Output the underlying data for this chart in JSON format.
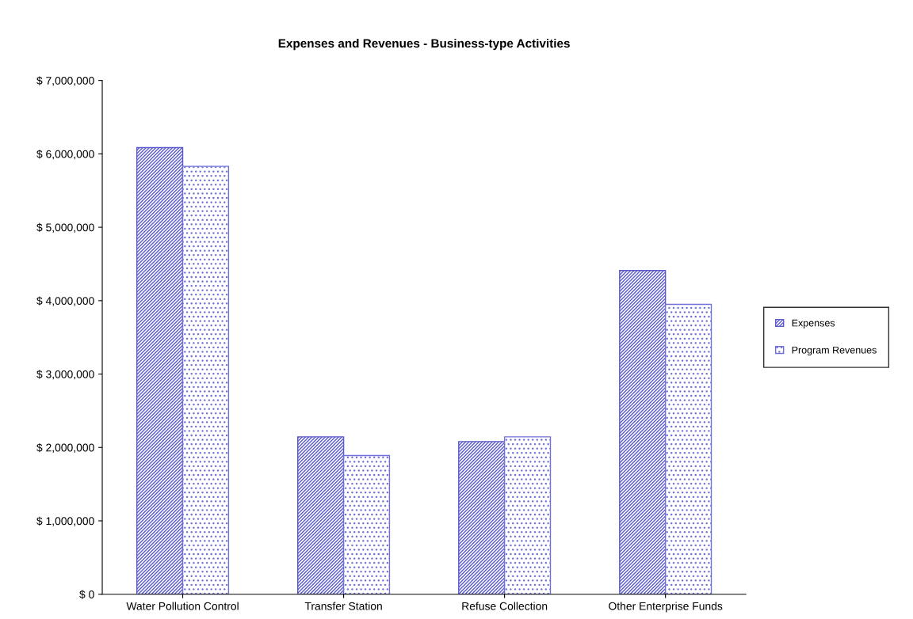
{
  "chart_data": {
    "type": "bar",
    "title": "Expenses and Revenues - Business-type Activities",
    "categories": [
      "Water Pollution Control",
      "Transfer Station",
      "Refuse Collection",
      "Other Enterprise Funds"
    ],
    "series": [
      {
        "name": "Expenses",
        "color": "#5a5acc",
        "values": [
          6085000,
          2145000,
          2080000,
          4410000
        ]
      },
      {
        "name": "Program Revenues",
        "color": "#7070d8",
        "values": [
          5830000,
          1890000,
          2145000,
          3950000
        ]
      }
    ],
    "ylim": [
      0,
      7000000
    ],
    "yticks": [
      {
        "value": 0,
        "label": "$ 0"
      },
      {
        "value": 1000000,
        "label": "$ 1,000,000"
      },
      {
        "value": 2000000,
        "label": "$ 2,000,000"
      },
      {
        "value": 3000000,
        "label": "$ 3,000,000"
      },
      {
        "value": 4000000,
        "label": "$ 4,000,000"
      },
      {
        "value": 5000000,
        "label": "$ 5,000,000"
      },
      {
        "value": 6000000,
        "label": "$ 6,000,000"
      },
      {
        "value": 7000000,
        "label": "$ 7,000,000"
      }
    ],
    "grid": false,
    "legend": "right"
  }
}
